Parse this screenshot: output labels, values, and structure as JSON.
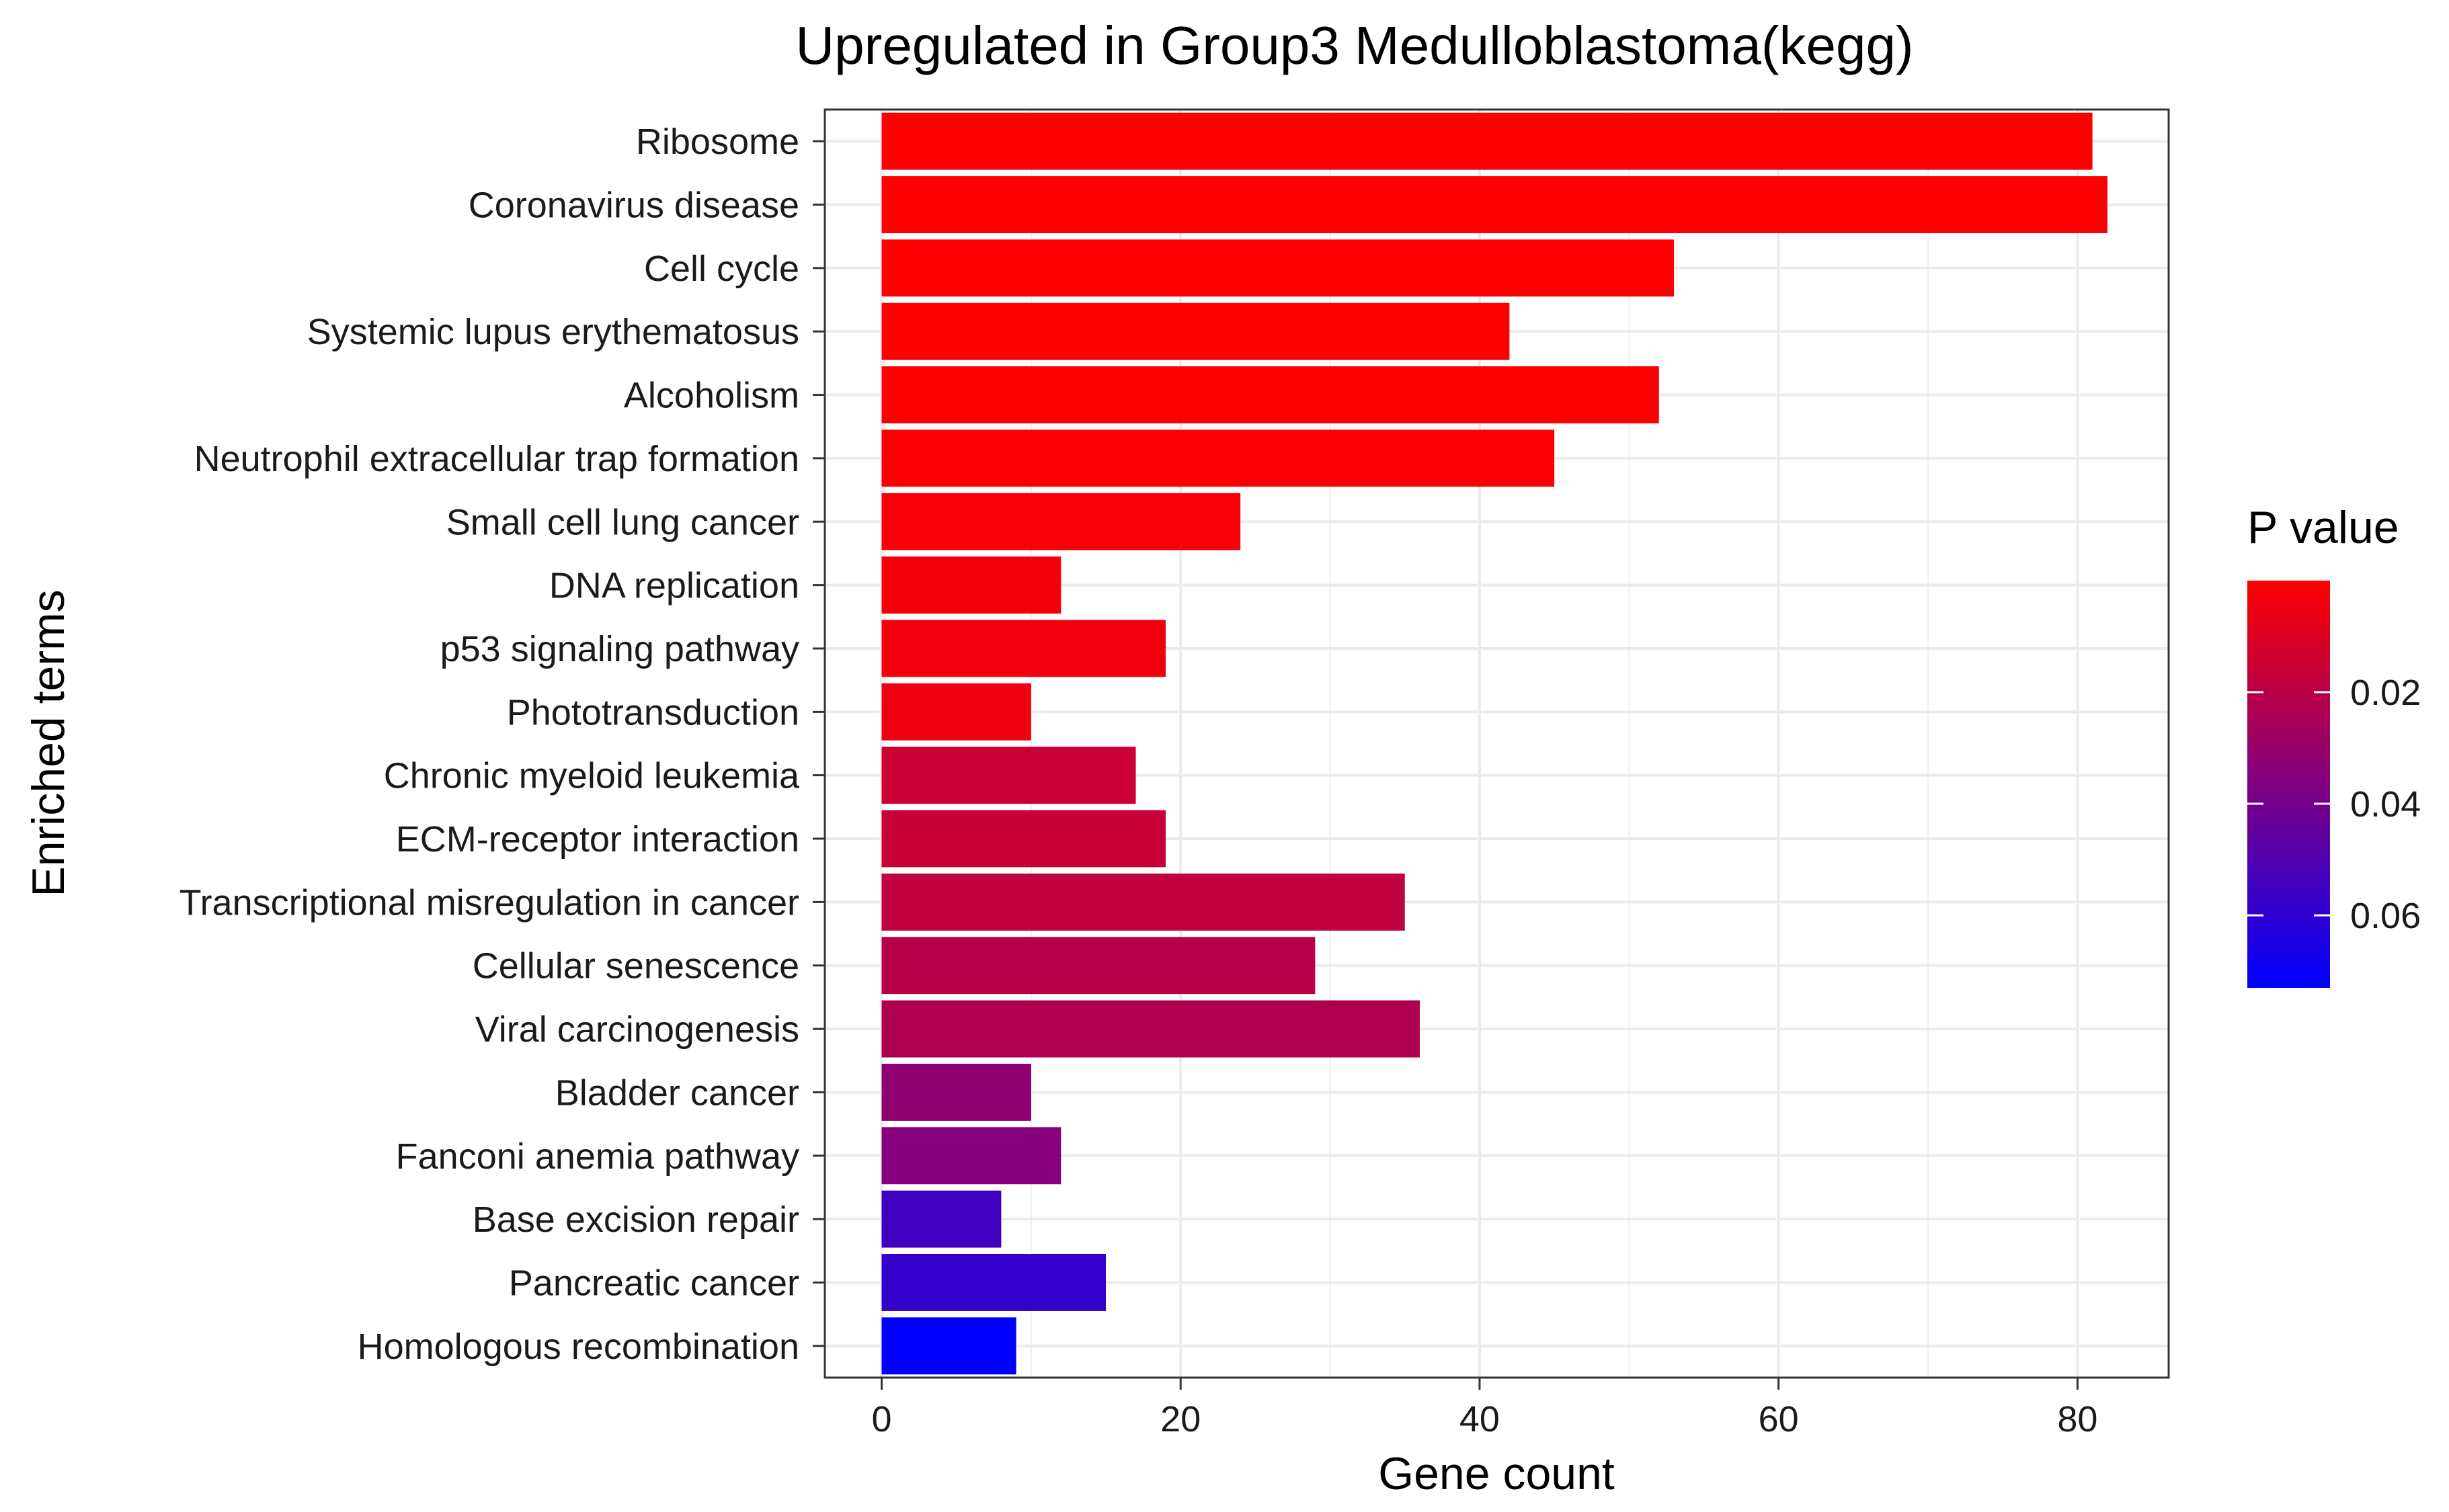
{
  "chart_data": {
    "type": "bar",
    "orientation": "horizontal",
    "title": "Upregulated in Group3 Medulloblastoma(kegg)",
    "xlabel": "Gene count",
    "ylabel": "Enriched terms",
    "xlim": [
      -3.8,
      86.1
    ],
    "x_ticks": [
      0,
      20,
      40,
      60,
      80
    ],
    "grid": true,
    "categories": [
      "Ribosome",
      "Coronavirus disease",
      "Cell cycle",
      "Systemic lupus erythematosus",
      "Alcoholism",
      "Neutrophil extracellular trap formation",
      "Small cell lung cancer",
      "DNA replication",
      "p53 signaling pathway",
      "Phototransduction",
      "Chronic myeloid leukemia",
      "ECM-receptor interaction",
      "Transcriptional misregulation in cancer",
      "Cellular senescence",
      "Viral carcinogenesis",
      "Bladder cancer",
      "Fanconi anemia pathway",
      "Base excision repair",
      "Pancreatic cancer",
      "Homologous recombination"
    ],
    "values": [
      81,
      82,
      53,
      42,
      52,
      45,
      24,
      12,
      19,
      10,
      17,
      19,
      35,
      29,
      36,
      10,
      12,
      8,
      15,
      9
    ],
    "p_values": [
      0.0001,
      0.0002,
      0.0003,
      0.0005,
      0.001,
      0.0015,
      0.002,
      0.003,
      0.004,
      0.005,
      0.015,
      0.016,
      0.018,
      0.021,
      0.023,
      0.032,
      0.035,
      0.055,
      0.058,
      0.073
    ],
    "legend": {
      "title": "P value",
      "position": "right",
      "ticks": [
        0.02,
        0.04,
        0.06
      ],
      "range": [
        0.0,
        0.073
      ],
      "color_low": "#ff0000",
      "color_high": "#0000ff"
    }
  }
}
